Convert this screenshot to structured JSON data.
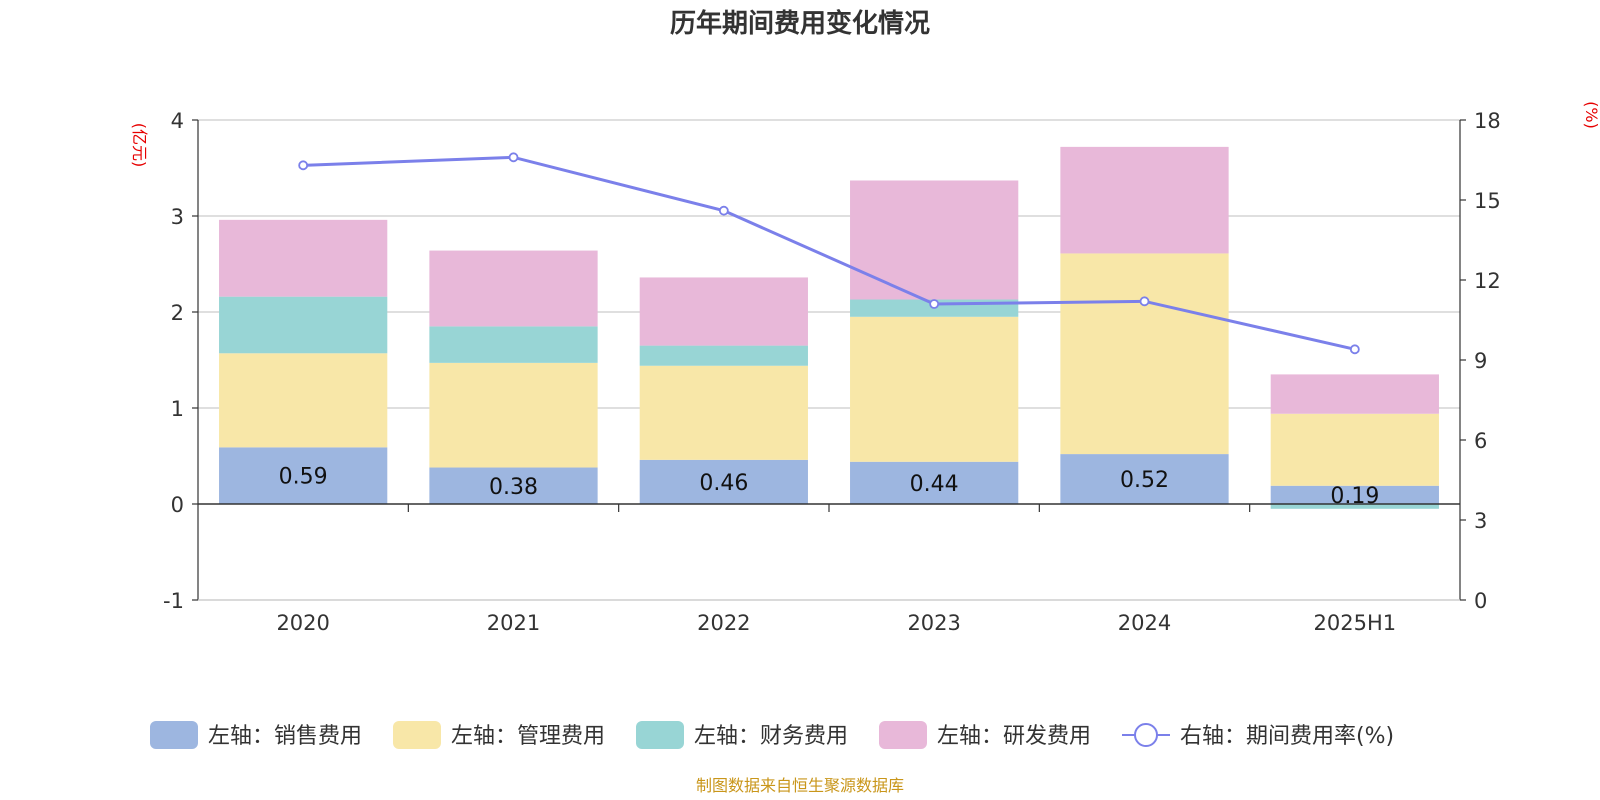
{
  "chart_data": {
    "type": "bar",
    "title": "历年期间费用变化情况",
    "categories": [
      "2020",
      "2021",
      "2022",
      "2023",
      "2024",
      "2025H1"
    ],
    "left_axis": {
      "unit": "(亿元)",
      "ylim": [
        -1,
        4
      ],
      "ticks": [
        "-1",
        "0",
        "1",
        "2",
        "3",
        "4"
      ]
    },
    "right_axis": {
      "unit": "(%)",
      "ylim": [
        0,
        18
      ],
      "ticks": [
        "0",
        "3",
        "6",
        "9",
        "12",
        "15",
        "18"
      ]
    },
    "grid": true,
    "legend_position": "bottom",
    "series": [
      {
        "name": "左轴：销售费用",
        "type": "bar",
        "stack": "left",
        "color": "#9db6e0",
        "values": [
          0.59,
          0.38,
          0.46,
          0.44,
          0.52,
          0.19
        ],
        "labels": [
          "0.59",
          "0.38",
          "0.46",
          "0.44",
          "0.52",
          "0.19"
        ]
      },
      {
        "name": "左轴：管理费用",
        "type": "bar",
        "stack": "left",
        "color": "#f8e7a8",
        "values": [
          0.98,
          1.09,
          0.98,
          1.51,
          2.09,
          0.75
        ]
      },
      {
        "name": "左轴：财务费用",
        "type": "bar",
        "stack": "left",
        "color": "#98d5d5",
        "values": [
          0.59,
          0.38,
          0.21,
          0.18,
          0.0,
          -0.05
        ]
      },
      {
        "name": "左轴：研发费用",
        "type": "bar",
        "stack": "left",
        "color": "#e8b8d9",
        "values": [
          0.8,
          0.79,
          0.71,
          1.24,
          1.11,
          0.41
        ]
      },
      {
        "name": "右轴：期间费用率(%)",
        "type": "line",
        "axis": "right",
        "color": "#7b80ea",
        "values": [
          16.3,
          16.6,
          14.6,
          11.1,
          11.2,
          9.4
        ]
      }
    ],
    "source": "制图数据来自恒生聚源数据库"
  }
}
